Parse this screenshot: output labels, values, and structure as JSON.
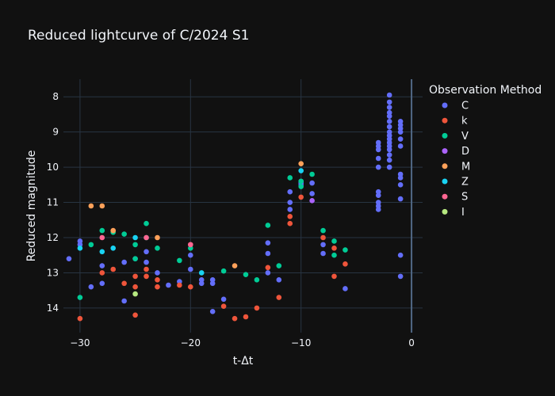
{
  "chart_data": {
    "type": "scatter",
    "title": "Reduced lightcurve of C/2024 S1",
    "xlabel": "t-Δt",
    "ylabel": "Reduced magnitude",
    "xlim": [
      -31.5,
      1
    ],
    "ylim": [
      14.7,
      7.5
    ],
    "y_reversed": true,
    "x_ticks": [
      -30,
      -20,
      -10,
      0
    ],
    "x_tick_labels": [
      "−30",
      "−20",
      "−10",
      "0"
    ],
    "y_ticks": [
      8,
      9,
      10,
      11,
      12,
      13,
      14
    ],
    "y_tick_labels": [
      "8",
      "9",
      "10",
      "11",
      "12",
      "13",
      "14"
    ],
    "grid": true,
    "legend": {
      "title": "Observation Method",
      "placement": "right"
    },
    "series": [
      {
        "name": "C",
        "color": "#636efa",
        "points": [
          [
            -31,
            12.6
          ],
          [
            -30,
            12.1
          ],
          [
            -30,
            12.2
          ],
          [
            -29,
            13.4
          ],
          [
            -28,
            12.8
          ],
          [
            -28,
            13.3
          ],
          [
            -26,
            13.8
          ],
          [
            -26,
            12.7
          ],
          [
            -25,
            12.6
          ],
          [
            -24,
            12.7
          ],
          [
            -24,
            12.4
          ],
          [
            -23,
            13.0
          ],
          [
            -22,
            13.35
          ],
          [
            -21,
            13.25
          ],
          [
            -20,
            12.5
          ],
          [
            -20,
            12.9
          ],
          [
            -19,
            13.2
          ],
          [
            -19,
            13.3
          ],
          [
            -18,
            13.2
          ],
          [
            -18,
            13.3
          ],
          [
            -18,
            14.1
          ],
          [
            -17,
            13.75
          ],
          [
            -13,
            12.15
          ],
          [
            -13,
            12.45
          ],
          [
            -13,
            13.0
          ],
          [
            -12,
            13.2
          ],
          [
            -11,
            11.0
          ],
          [
            -11,
            11.2
          ],
          [
            -11,
            10.7
          ],
          [
            -10,
            10.5
          ],
          [
            -10,
            10.45
          ],
          [
            -10,
            10.4
          ],
          [
            -9,
            10.45
          ],
          [
            -9,
            10.75
          ],
          [
            -8,
            12.2
          ],
          [
            -8,
            12.45
          ],
          [
            -6,
            13.45
          ],
          [
            -3,
            9.3
          ],
          [
            -3,
            9.4
          ],
          [
            -3,
            9.5
          ],
          [
            -3,
            9.75
          ],
          [
            -3,
            10.0
          ],
          [
            -3,
            10.7
          ],
          [
            -3,
            10.8
          ],
          [
            -3,
            11.0
          ],
          [
            -3,
            11.1
          ],
          [
            -3,
            11.2
          ],
          [
            -2,
            7.95
          ],
          [
            -2,
            8.15
          ],
          [
            -2,
            8.3
          ],
          [
            -2,
            8.45
          ],
          [
            -2,
            8.55
          ],
          [
            -2,
            8.7
          ],
          [
            -2,
            8.85
          ],
          [
            -2,
            9.0
          ],
          [
            -2,
            9.1
          ],
          [
            -2,
            9.2
          ],
          [
            -2,
            9.3
          ],
          [
            -2,
            9.4
          ],
          [
            -2,
            9.5
          ],
          [
            -2,
            9.65
          ],
          [
            -2,
            9.8
          ],
          [
            -2,
            10.0
          ],
          [
            -1,
            8.7
          ],
          [
            -1,
            8.8
          ],
          [
            -1,
            8.9
          ],
          [
            -1,
            9.0
          ],
          [
            -1,
            9.2
          ],
          [
            -1,
            9.4
          ],
          [
            -1,
            10.2
          ],
          [
            -1,
            10.3
          ],
          [
            -1,
            10.5
          ],
          [
            -1,
            10.9
          ],
          [
            -1,
            12.5
          ],
          [
            -1,
            13.1
          ]
        ]
      },
      {
        "name": "k",
        "color": "#ef553b",
        "points": [
          [
            -30,
            14.3
          ],
          [
            -28,
            13.0
          ],
          [
            -27,
            12.9
          ],
          [
            -26,
            13.3
          ],
          [
            -25,
            13.1
          ],
          [
            -25,
            13.4
          ],
          [
            -25,
            14.2
          ],
          [
            -24,
            12.9
          ],
          [
            -24,
            13.1
          ],
          [
            -23,
            13.2
          ],
          [
            -23,
            13.4
          ],
          [
            -21,
            13.35
          ],
          [
            -20,
            13.4
          ],
          [
            -20,
            12.2
          ],
          [
            -17,
            13.95
          ],
          [
            -16,
            14.3
          ],
          [
            -15,
            14.25
          ],
          [
            -14,
            14.0
          ],
          [
            -13,
            12.85
          ],
          [
            -12,
            13.7
          ],
          [
            -11,
            11.4
          ],
          [
            -11,
            11.6
          ],
          [
            -10,
            10.85
          ],
          [
            -8,
            12.0
          ],
          [
            -7,
            12.3
          ],
          [
            -7,
            13.1
          ],
          [
            -6,
            12.75
          ]
        ]
      },
      {
        "name": "V",
        "color": "#00cc96",
        "points": [
          [
            -30,
            13.7
          ],
          [
            -29,
            12.2
          ],
          [
            -28,
            11.8
          ],
          [
            -27,
            11.85
          ],
          [
            -26,
            11.9
          ],
          [
            -25,
            12.6
          ],
          [
            -25,
            12.2
          ],
          [
            -24,
            11.6
          ],
          [
            -24,
            12.0
          ],
          [
            -23,
            12.3
          ],
          [
            -21,
            12.65
          ],
          [
            -20,
            12.3
          ],
          [
            -17,
            12.95
          ],
          [
            -15,
            13.05
          ],
          [
            -14,
            13.2
          ],
          [
            -13,
            11.65
          ],
          [
            -12,
            12.8
          ],
          [
            -11,
            10.3
          ],
          [
            -10,
            10.4
          ],
          [
            -10,
            10.55
          ],
          [
            -9,
            10.2
          ],
          [
            -8,
            11.8
          ],
          [
            -7,
            12.1
          ],
          [
            -7,
            12.5
          ],
          [
            -6,
            12.35
          ]
        ]
      },
      {
        "name": "D",
        "color": "#ab63fa",
        "points": [
          [
            -9,
            10.95
          ]
        ]
      },
      {
        "name": "M",
        "color": "#ffa15a",
        "points": [
          [
            -29,
            11.1
          ],
          [
            -28,
            11.1
          ],
          [
            -27,
            11.8
          ],
          [
            -23,
            12.0
          ],
          [
            -16,
            12.8
          ],
          [
            -10,
            9.9
          ]
        ]
      },
      {
        "name": "Z",
        "color": "#19d3f3",
        "points": [
          [
            -30,
            12.3
          ],
          [
            -28,
            12.4
          ],
          [
            -27,
            12.3
          ],
          [
            -25,
            12.0
          ],
          [
            -19,
            13.0
          ],
          [
            -10,
            10.1
          ]
        ]
      },
      {
        "name": "S",
        "color": "#ff6692",
        "points": [
          [
            -28,
            12.0
          ],
          [
            -24,
            12.0
          ],
          [
            -20,
            12.2
          ]
        ]
      },
      {
        "name": "I",
        "color": "#b6e880",
        "points": [
          [
            -25,
            13.6
          ]
        ]
      }
    ]
  }
}
